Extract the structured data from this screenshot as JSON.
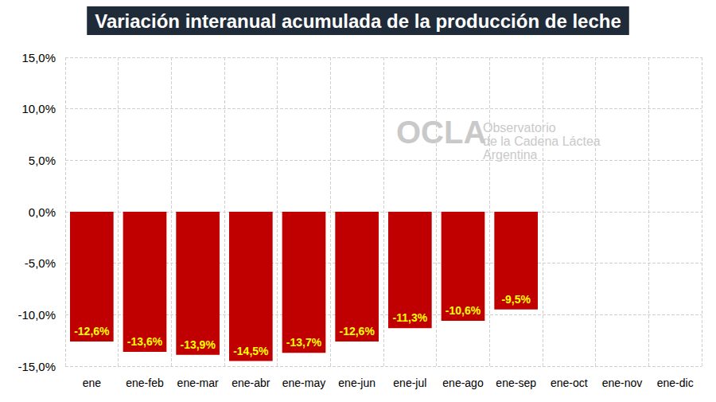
{
  "chart_data": {
    "type": "bar",
    "title": "Variación interanual acumulada de la producción de leche",
    "categories": [
      "ene",
      "ene-feb",
      "ene-mar",
      "ene-abr",
      "ene-may",
      "ene-jun",
      "ene-jul",
      "ene-ago",
      "ene-sep",
      "ene-oct",
      "ene-nov",
      "ene-dic"
    ],
    "values": [
      -12.6,
      -13.6,
      -13.9,
      -14.5,
      -13.7,
      -12.6,
      -11.3,
      -10.6,
      -9.5,
      null,
      null,
      null
    ],
    "value_labels": [
      "-12,6%",
      "-13,6%",
      "-13,9%",
      "-14,5%",
      "-13,7%",
      "-12,6%",
      "-11,3%",
      "-10,6%",
      "-9,5%",
      null,
      null,
      null
    ],
    "color": "#c00000",
    "ylim": [
      -15,
      15
    ],
    "yticks": [
      {
        "value": -15,
        "label": "-15,0%"
      },
      {
        "value": -10,
        "label": "-10,0%"
      },
      {
        "value": -5,
        "label": "-5,0%"
      },
      {
        "value": 0,
        "label": "0,0%"
      },
      {
        "value": 5,
        "label": "5,0%"
      },
      {
        "value": 10,
        "label": "10,0%"
      },
      {
        "value": 15,
        "label": "15,0%"
      }
    ],
    "grid": true,
    "data_labels": true,
    "annotations": [
      "OCLA",
      "Observatorio",
      "de la Cadena Láctea",
      "Argentina"
    ]
  }
}
